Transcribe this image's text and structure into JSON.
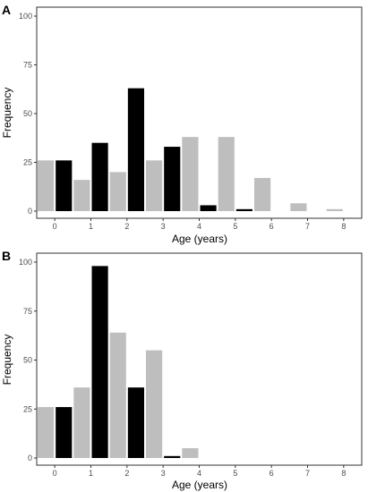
{
  "colors": {
    "light": "#bebebe",
    "dark": "#000000",
    "frame": "#333333",
    "tick_text": "#4d4d4d"
  },
  "chart_data": [
    {
      "type": "bar",
      "panel_label": "A",
      "xlabel": "Age (years)",
      "ylabel": "Frequency",
      "ylim": [
        0,
        100
      ],
      "yticks": [
        0,
        25,
        50,
        75,
        100
      ],
      "xlim": [
        -0.5,
        8.5
      ],
      "xticks": [
        0,
        1,
        2,
        3,
        4,
        5,
        6,
        7,
        8
      ],
      "grid": false,
      "series": [
        {
          "color": "light",
          "x": [
            -0.25,
            0.75,
            1.75,
            2.75,
            3.75,
            4.75,
            5.75,
            6.75,
            7.75
          ],
          "values": [
            26,
            16,
            20,
            26,
            38,
            38,
            17,
            4,
            1
          ]
        },
        {
          "color": "dark",
          "x": [
            0.25,
            1.25,
            2.25,
            3.25,
            4.25,
            5.25
          ],
          "values": [
            26,
            35,
            63,
            33,
            3,
            1
          ]
        }
      ]
    },
    {
      "type": "bar",
      "panel_label": "B",
      "xlabel": "Age (years)",
      "ylabel": "Frequency",
      "ylim": [
        0,
        100
      ],
      "yticks": [
        0,
        25,
        50,
        75,
        100
      ],
      "xlim": [
        -0.5,
        8.5
      ],
      "xticks": [
        0,
        1,
        2,
        3,
        4,
        5,
        6,
        7,
        8
      ],
      "grid": false,
      "series": [
        {
          "color": "light",
          "x": [
            -0.25,
            0.75,
            1.75,
            2.75,
            3.75
          ],
          "values": [
            26,
            36,
            64,
            55,
            5
          ]
        },
        {
          "color": "dark",
          "x": [
            0.25,
            1.25,
            2.25,
            3.25
          ],
          "values": [
            26,
            98,
            36,
            1
          ]
        }
      ]
    }
  ]
}
